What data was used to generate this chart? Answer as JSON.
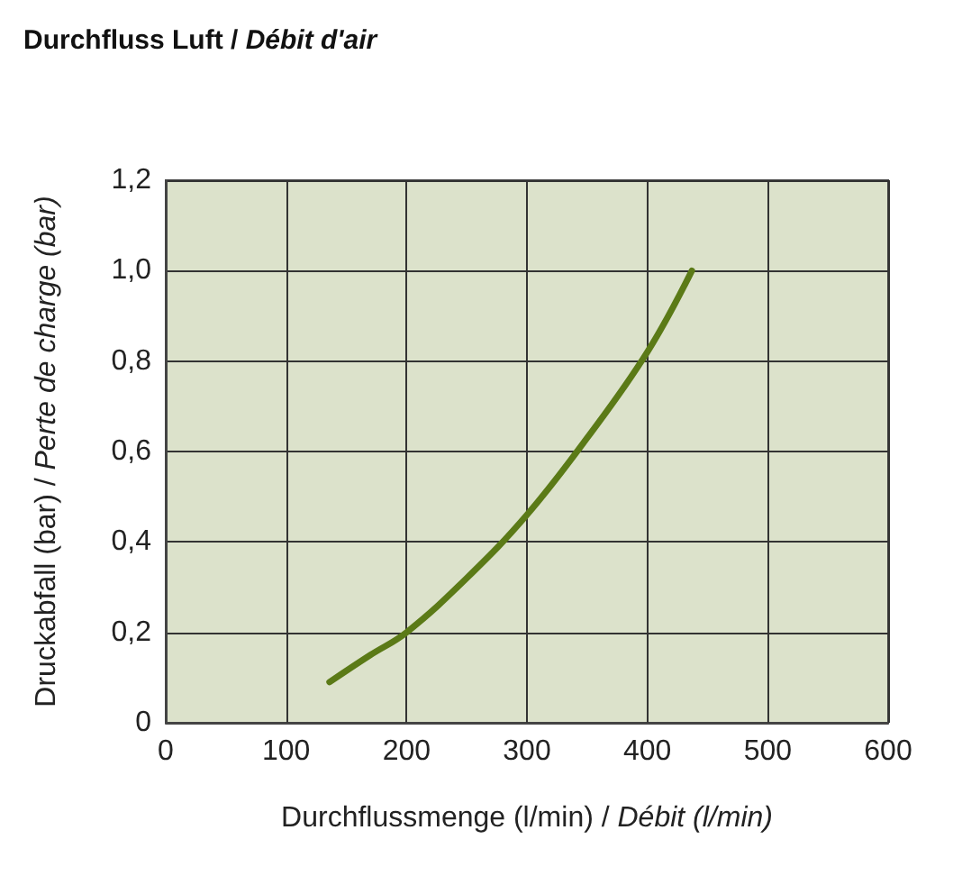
{
  "chart_data": {
    "type": "line",
    "title": "Durchfluss Luft / Débit d'air",
    "xlabel": "Durchflussmenge (l/min) / Débit (l/min)",
    "ylabel": "Druckabfall (bar) / Perte de charge (bar)",
    "x": [
      136,
      170,
      200,
      250,
      300,
      350,
      400,
      437
    ],
    "series": [
      {
        "color": "#5b7a17",
        "values": [
          0.09,
          0.15,
          0.2,
          0.32,
          0.46,
          0.63,
          0.82,
          1.0
        ]
      }
    ],
    "xlim": [
      0,
      600
    ],
    "xticks": [
      0,
      100,
      200,
      300,
      400,
      500,
      600
    ],
    "ylim": [
      0,
      1.2
    ],
    "yticks": [
      0,
      {
        "value": 0.2,
        "label": "0,2"
      },
      {
        "value": 0.4,
        "label": "0,4"
      },
      {
        "value": 0.6,
        "label": "0,6"
      },
      {
        "value": 0.8,
        "label": "0,8"
      },
      {
        "value": 1,
        "label": "1,0"
      },
      {
        "value": 1.2,
        "label": "1,2"
      }
    ],
    "grid": true,
    "marker": "none",
    "line_style": "solid"
  }
}
